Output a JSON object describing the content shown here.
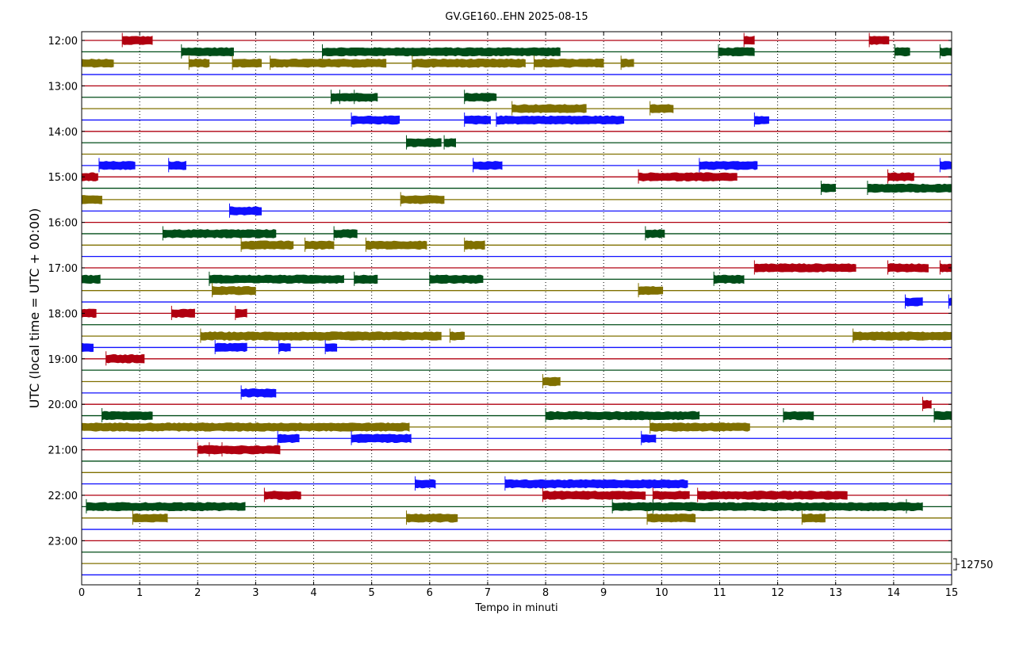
{
  "chart_data": {
    "type": "line",
    "title": "GV.GE160..EHN 2025-08-15",
    "xlabel": "Tempo in minuti",
    "ylabel": "UTC (local time = UTC + 00:00)",
    "xlim": [
      0,
      15
    ],
    "x_ticks": [
      "0",
      "1",
      "2",
      "3",
      "4",
      "5",
      "6",
      "7",
      "8",
      "9",
      "10",
      "11",
      "12",
      "13",
      "14",
      "15"
    ],
    "y_tick_labels": [
      "12:00",
      "13:00",
      "14:00",
      "15:00",
      "16:00",
      "17:00",
      "18:00",
      "19:00",
      "20:00",
      "21:00",
      "22:00",
      "23:00"
    ],
    "grid": "vertical-dotted",
    "scale_label": "12750",
    "colors": [
      "#b00010",
      "#004d18",
      "#807000",
      "#1010ff"
    ],
    "trace_interval_minutes": 15,
    "traces": [
      {
        "start": "12:00",
        "bursts": [
          [
            0.7,
            1.22
          ],
          [
            11.42,
            11.6
          ],
          [
            13.58,
            13.92
          ]
        ]
      },
      {
        "start": "12:15",
        "bursts": [
          [
            1.72,
            2.62
          ],
          [
            4.15,
            8.25
          ],
          [
            10.98,
            11.6
          ],
          [
            14.02,
            14.28
          ],
          [
            14.8,
            15
          ]
        ]
      },
      {
        "start": "12:30",
        "bursts": [
          [
            0,
            0.55
          ],
          [
            1.85,
            2.2
          ],
          [
            2.6,
            3.1
          ],
          [
            3.25,
            5.25
          ],
          [
            5.7,
            7.65
          ],
          [
            7.8,
            9.0
          ],
          [
            9.3,
            9.52
          ]
        ]
      },
      {
        "start": "12:45",
        "bursts": []
      },
      {
        "start": "13:00",
        "bursts": []
      },
      {
        "start": "13:15",
        "bursts": [
          [
            4.3,
            4.45
          ],
          [
            4.45,
            4.7
          ],
          [
            4.7,
            5.1
          ],
          [
            6.6,
            7.15
          ]
        ]
      },
      {
        "start": "13:30",
        "bursts": [
          [
            7.42,
            8.7
          ],
          [
            9.8,
            10.2
          ]
        ]
      },
      {
        "start": "13:45",
        "bursts": [
          [
            4.65,
            5.48
          ],
          [
            6.6,
            7.05
          ],
          [
            7.15,
            9.35
          ],
          [
            11.6,
            11.85
          ]
        ]
      },
      {
        "start": "14:00",
        "bursts": []
      },
      {
        "start": "14:15",
        "bursts": [
          [
            5.6,
            6.2
          ],
          [
            6.25,
            6.45
          ]
        ]
      },
      {
        "start": "14:30",
        "bursts": []
      },
      {
        "start": "14:45",
        "bursts": [
          [
            0.3,
            0.92
          ],
          [
            1.5,
            1.8
          ],
          [
            6.75,
            7.25
          ],
          [
            10.65,
            11.65
          ],
          [
            14.8,
            15
          ]
        ]
      },
      {
        "start": "15:00",
        "bursts": [
          [
            0,
            0.28
          ],
          [
            9.6,
            11.3
          ],
          [
            13.9,
            14.35
          ]
        ]
      },
      {
        "start": "15:15",
        "bursts": [
          [
            12.75,
            13.0
          ],
          [
            13.55,
            15
          ]
        ]
      },
      {
        "start": "15:30",
        "bursts": [
          [
            0,
            0.35
          ],
          [
            5.5,
            6.25
          ]
        ]
      },
      {
        "start": "15:45",
        "bursts": [
          [
            2.55,
            3.1
          ]
        ]
      },
      {
        "start": "16:00",
        "bursts": []
      },
      {
        "start": "16:15",
        "bursts": [
          [
            1.4,
            3.35
          ],
          [
            4.35,
            4.75
          ],
          [
            9.72,
            10.05
          ]
        ]
      },
      {
        "start": "16:30",
        "bursts": [
          [
            2.75,
            3.65
          ],
          [
            3.85,
            4.35
          ],
          [
            4.9,
            5.95
          ],
          [
            6.6,
            6.95
          ]
        ]
      },
      {
        "start": "16:45",
        "bursts": []
      },
      {
        "start": "17:00",
        "bursts": [
          [
            11.6,
            13.35
          ],
          [
            13.9,
            14.6
          ],
          [
            14.8,
            15
          ]
        ]
      },
      {
        "start": "17:15",
        "bursts": [
          [
            0,
            0.32
          ],
          [
            2.2,
            4.52
          ],
          [
            4.7,
            5.1
          ],
          [
            6.0,
            6.92
          ],
          [
            10.9,
            11.42
          ]
        ]
      },
      {
        "start": "17:30",
        "bursts": [
          [
            2.25,
            3.0
          ],
          [
            9.6,
            10.02
          ]
        ]
      },
      {
        "start": "17:45",
        "bursts": [
          [
            14.2,
            14.5
          ],
          [
            14.95,
            15
          ]
        ]
      },
      {
        "start": "18:00",
        "bursts": [
          [
            0,
            0.25
          ],
          [
            1.55,
            1.95
          ],
          [
            2.65,
            2.85
          ]
        ]
      },
      {
        "start": "18:15",
        "bursts": []
      },
      {
        "start": "18:30",
        "bursts": [
          [
            2.05,
            6.2
          ],
          [
            6.35,
            6.6
          ],
          [
            13.3,
            15
          ]
        ]
      },
      {
        "start": "18:45",
        "bursts": [
          [
            0,
            0.2
          ],
          [
            2.3,
            2.85
          ],
          [
            3.4,
            3.6
          ],
          [
            4.2,
            4.4
          ]
        ]
      },
      {
        "start": "19:00",
        "bursts": [
          [
            0.42,
            1.08
          ]
        ]
      },
      {
        "start": "19:15",
        "bursts": []
      },
      {
        "start": "19:30",
        "bursts": [
          [
            7.95,
            8.25
          ]
        ]
      },
      {
        "start": "19:45",
        "bursts": [
          [
            2.75,
            3.35
          ]
        ]
      },
      {
        "start": "20:00",
        "bursts": [
          [
            14.5,
            14.65
          ]
        ]
      },
      {
        "start": "20:15",
        "bursts": [
          [
            0.35,
            1.22
          ],
          [
            8.0,
            10.65
          ],
          [
            12.1,
            12.62
          ],
          [
            14.7,
            15
          ]
        ]
      },
      {
        "start": "20:30",
        "bursts": [
          [
            0,
            5.65
          ],
          [
            9.8,
            11.52
          ]
        ]
      },
      {
        "start": "20:45",
        "bursts": [
          [
            3.38,
            3.75
          ],
          [
            4.65,
            5.68
          ],
          [
            9.65,
            9.9
          ]
        ]
      },
      {
        "start": "21:00",
        "bursts": [
          [
            2.0,
            2.2
          ],
          [
            2.2,
            2.42
          ],
          [
            2.42,
            3.42
          ]
        ]
      },
      {
        "start": "21:15",
        "bursts": []
      },
      {
        "start": "21:30",
        "bursts": []
      },
      {
        "start": "21:45",
        "bursts": [
          [
            5.75,
            6.1
          ],
          [
            7.3,
            10.45
          ]
        ]
      },
      {
        "start": "22:00",
        "bursts": [
          [
            3.15,
            3.78
          ],
          [
            7.95,
            9.72
          ],
          [
            9.85,
            10.48
          ],
          [
            10.62,
            13.2
          ]
        ]
      },
      {
        "start": "22:15",
        "bursts": [
          [
            0.08,
            2.82
          ],
          [
            9.15,
            9.85
          ],
          [
            9.85,
            14.22
          ],
          [
            14.22,
            14.5
          ]
        ]
      },
      {
        "start": "22:30",
        "bursts": [
          [
            0.88,
            1.48
          ],
          [
            5.6,
            6.48
          ],
          [
            9.75,
            10.58
          ],
          [
            12.42,
            12.82
          ]
        ]
      },
      {
        "start": "22:45",
        "bursts": []
      },
      {
        "start": "23:00",
        "bursts": []
      },
      {
        "start": "23:15",
        "bursts": []
      },
      {
        "start": "23:30",
        "bursts": []
      },
      {
        "start": "23:45",
        "bursts": []
      }
    ]
  }
}
